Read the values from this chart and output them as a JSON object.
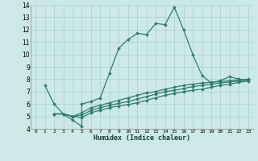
{
  "xlabel": "Humidex (Indice chaleur)",
  "bg_color": "#cce9e7",
  "grid_color": "#aad0cd",
  "line_color": "#2e7d72",
  "xlim": [
    -0.5,
    23.5
  ],
  "ylim": [
    4,
    14
  ],
  "xticks": [
    0,
    1,
    2,
    3,
    4,
    5,
    6,
    7,
    8,
    9,
    10,
    11,
    12,
    13,
    14,
    15,
    16,
    17,
    18,
    19,
    20,
    21,
    22,
    23
  ],
  "yticks": [
    4,
    5,
    6,
    7,
    8,
    9,
    10,
    11,
    12,
    13,
    14
  ],
  "series1_x": [
    1,
    2,
    3,
    4,
    5,
    5,
    6,
    7,
    8,
    9,
    10,
    11,
    12,
    13,
    14,
    15,
    16,
    17,
    18,
    19,
    20,
    21,
    22,
    23
  ],
  "series1_y": [
    7.5,
    6.0,
    5.2,
    4.7,
    4.2,
    6.0,
    6.2,
    6.5,
    8.5,
    10.5,
    11.2,
    11.7,
    11.6,
    12.5,
    12.4,
    13.8,
    12.0,
    10.0,
    8.3,
    7.7,
    7.9,
    8.2,
    8.0,
    7.95
  ],
  "series2_x": [
    2,
    3,
    4,
    5,
    6,
    7,
    8,
    9,
    10,
    11,
    12,
    13,
    14,
    15,
    16,
    17,
    18,
    19,
    20,
    21,
    22,
    23
  ],
  "series2_y": [
    5.2,
    5.2,
    5.0,
    5.3,
    5.7,
    5.9,
    6.1,
    6.3,
    6.5,
    6.7,
    6.9,
    7.0,
    7.2,
    7.35,
    7.5,
    7.6,
    7.7,
    7.75,
    7.82,
    7.88,
    7.94,
    8.0
  ],
  "series3_x": [
    2,
    3,
    4,
    5,
    6,
    7,
    8,
    9,
    10,
    11,
    12,
    13,
    14,
    15,
    16,
    17,
    18,
    19,
    20,
    21,
    22,
    23
  ],
  "series3_y": [
    5.2,
    5.2,
    5.0,
    5.1,
    5.5,
    5.7,
    5.9,
    6.05,
    6.2,
    6.4,
    6.6,
    6.8,
    7.0,
    7.1,
    7.25,
    7.4,
    7.5,
    7.6,
    7.7,
    7.78,
    7.86,
    7.93
  ],
  "series4_x": [
    2,
    3,
    4,
    5,
    6,
    7,
    8,
    9,
    10,
    11,
    12,
    13,
    14,
    15,
    16,
    17,
    18,
    19,
    20,
    21,
    22,
    23
  ],
  "series4_y": [
    5.2,
    5.2,
    5.0,
    4.9,
    5.3,
    5.5,
    5.7,
    5.85,
    5.95,
    6.1,
    6.3,
    6.5,
    6.7,
    6.85,
    7.0,
    7.1,
    7.2,
    7.35,
    7.5,
    7.6,
    7.75,
    7.85
  ]
}
